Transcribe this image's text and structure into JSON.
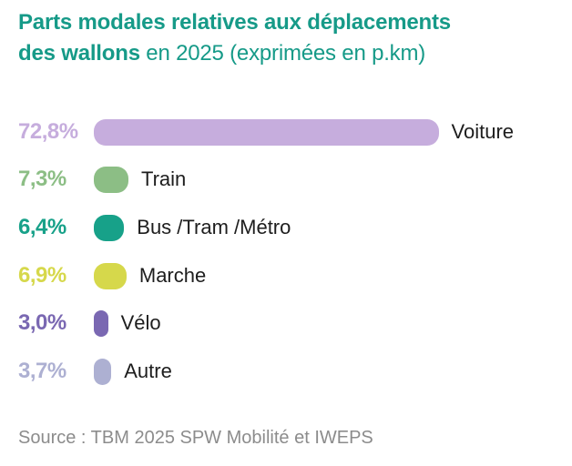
{
  "title": {
    "line1_bold": "Parts modales relatives aux déplacements",
    "line2_bold": "des wallons",
    "line2_regular": " en 2025 (exprimées en p.km)"
  },
  "source": "Source : TBM 2025 SPW Mobilité et IWEPS",
  "colors": {
    "title": "#169a88",
    "category_label": "#1d1d1d",
    "source_text": "#8c8c8c",
    "background": "#ffffff"
  },
  "chart_data": {
    "type": "bar",
    "orientation": "horizontal",
    "title": "Parts modales relatives aux déplacements des wallons en 2025 (exprimées en p.km)",
    "source": "Source : TBM 2025 SPW Mobilité et IWEPS",
    "xlim": [
      0,
      100
    ],
    "grid": false,
    "legend": false,
    "categories": [
      "Voiture",
      "Train",
      "Bus /Tram /Métro",
      "Marche",
      "Vélo",
      "Autre"
    ],
    "values": [
      72.8,
      7.3,
      6.4,
      6.9,
      3.0,
      3.7
    ],
    "rows": [
      {
        "label": "Voiture",
        "value": 72.8,
        "value_label": "72,8%",
        "color": "#c6addd"
      },
      {
        "label": "Train",
        "value": 7.3,
        "value_label": "7,3%",
        "color": "#8cbe85"
      },
      {
        "label": "Bus /Tram /Métro",
        "value": 6.4,
        "value_label": "6,4%",
        "color": "#17a189"
      },
      {
        "label": "Marche",
        "value": 6.9,
        "value_label": "6,9%",
        "color": "#d6d84b"
      },
      {
        "label": "Vélo",
        "value": 3.0,
        "value_label": "3,0%",
        "color": "#7a68b2"
      },
      {
        "label": "Autre",
        "value": 3.7,
        "value_label": "3,7%",
        "color": "#adb0d2"
      }
    ]
  }
}
